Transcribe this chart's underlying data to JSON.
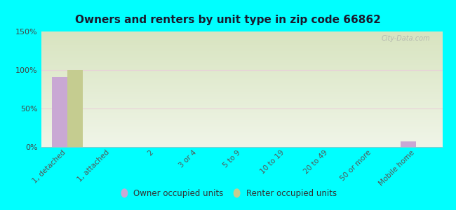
{
  "title": "Owners and renters by unit type in zip code 66862",
  "categories": [
    "1, detached",
    "1, attached",
    "2",
    "3 or 4",
    "5 to 9",
    "10 to 19",
    "20 to 49",
    "50 or more",
    "Mobile home"
  ],
  "owner_values": [
    91,
    0,
    0,
    0,
    0,
    0,
    0,
    0,
    7
  ],
  "renter_values": [
    100,
    0,
    0,
    0,
    0,
    0,
    0,
    0,
    0
  ],
  "owner_color": "#c9a8d4",
  "renter_color": "#c5cc90",
  "background_color": "#00ffff",
  "plot_bg_top": "#d8e4c0",
  "plot_bg_bottom": "#f0f5e8",
  "ylim": [
    0,
    150
  ],
  "yticks": [
    0,
    50,
    100,
    150
  ],
  "ytick_labels": [
    "0%",
    "50%",
    "100%",
    "150%"
  ],
  "watermark": "City-Data.com",
  "legend_owner": "Owner occupied units",
  "legend_renter": "Renter occupied units",
  "bar_width": 0.35,
  "grid_color": "#d0dbb8",
  "spine_color": "#bbbbbb"
}
